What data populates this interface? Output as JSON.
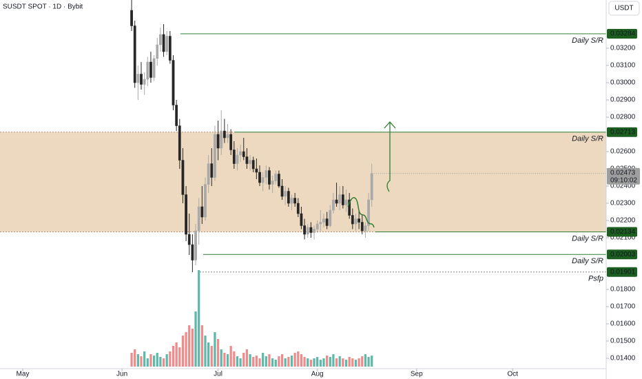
{
  "chart_data": {
    "type": "candlestick",
    "title": "SUSDT SPOT · 1D · Bybit",
    "currency": "USDT",
    "xlim": [
      -7.1,
      182.2
    ],
    "xticks": [
      {
        "value": 0,
        "label": "May"
      },
      {
        "value": 31,
        "label": "Jun"
      },
      {
        "value": 61,
        "label": "Jul"
      },
      {
        "value": 92,
        "label": "Aug"
      },
      {
        "value": 123,
        "label": "Sep"
      },
      {
        "value": 153,
        "label": "Oct"
      }
    ],
    "ylim": [
      0.0134,
      0.0348
    ],
    "yticks": [
      {
        "value": 0.032,
        "label": "0.03200"
      },
      {
        "value": 0.031,
        "label": "0.03100"
      },
      {
        "value": 0.03,
        "label": "0.03000"
      },
      {
        "value": 0.029,
        "label": "0.02900"
      },
      {
        "value": 0.028,
        "label": "0.02800"
      },
      {
        "value": 0.026,
        "label": "0.02600"
      },
      {
        "value": 0.025,
        "label": "0.02500"
      },
      {
        "value": 0.024,
        "label": "0.02400"
      },
      {
        "value": 0.023,
        "label": "0.02300"
      },
      {
        "value": 0.022,
        "label": "0.02200"
      },
      {
        "value": 0.021,
        "label": "0.02100"
      },
      {
        "value": 0.018,
        "label": "0.01800"
      },
      {
        "value": 0.017,
        "label": "0.01700"
      },
      {
        "value": 0.016,
        "label": "0.01600"
      },
      {
        "value": 0.015,
        "label": "0.01500"
      },
      {
        "value": 0.014,
        "label": "0.01400"
      }
    ],
    "up_color": "#a9a9a9",
    "down_color": "#262626",
    "volume_up_color": "#5fb8a9",
    "volume_down_color": "#ee8b8b",
    "zone": {
      "from": 0.02134,
      "to": 0.02713,
      "color": "#e9d2b4"
    },
    "levels": [
      {
        "value": 0.03284,
        "note": "Daily S/R"
      },
      {
        "value": 0.02713,
        "note": "Daily S/R"
      },
      {
        "value": 0.02134,
        "note": "Daily S/R"
      },
      {
        "value": 0.02003,
        "note": "Daily S/R"
      },
      {
        "value": 0.01901,
        "note": "Psfp"
      }
    ],
    "last_price": {
      "value": 0.02473,
      "countdown": "09:10:02"
    },
    "x": [
      34,
      35,
      36,
      37,
      38,
      39,
      40,
      41,
      42,
      43,
      44,
      45,
      46,
      47,
      48,
      49,
      50,
      51,
      52,
      53,
      54,
      55,
      56,
      57,
      58,
      59,
      60,
      61,
      62,
      63,
      64,
      65,
      66,
      67,
      68,
      69,
      70,
      71,
      72,
      73,
      74,
      75,
      76,
      77,
      78,
      79,
      80,
      81,
      82,
      83,
      84,
      85,
      86,
      87,
      88,
      89,
      90,
      91,
      92,
      93,
      94,
      95,
      96,
      97,
      98,
      99,
      100,
      101,
      102,
      103,
      104,
      105,
      106,
      107,
      108,
      109
    ],
    "open": [
      0.0342,
      0.0333,
      0.03,
      0.0305,
      0.0299,
      0.0302,
      0.0312,
      0.0303,
      0.0314,
      0.0322,
      0.0328,
      0.0318,
      0.0327,
      0.0313,
      0.0287,
      0.0275,
      0.0255,
      0.0235,
      0.0212,
      0.0206,
      0.0197,
      0.0214,
      0.0228,
      0.0222,
      0.0241,
      0.0253,
      0.0245,
      0.027,
      0.0262,
      0.0272,
      0.0268,
      0.027,
      0.0261,
      0.0253,
      0.0258,
      0.026,
      0.0257,
      0.0253,
      0.0255,
      0.025,
      0.0248,
      0.0242,
      0.0245,
      0.0249,
      0.0241,
      0.0243,
      0.0247,
      0.024,
      0.0234,
      0.0237,
      0.023,
      0.0233,
      0.023,
      0.0224,
      0.0217,
      0.0212,
      0.0216,
      0.0213,
      0.0215,
      0.0218,
      0.0219,
      0.0221,
      0.0217,
      0.0226,
      0.0232,
      0.023,
      0.0235,
      0.0229,
      0.0232,
      0.0223,
      0.0218,
      0.0221,
      0.0219,
      0.0214,
      0.0217,
      0.0232
    ],
    "high": [
      0.0348,
      0.0336,
      0.031,
      0.0312,
      0.0306,
      0.0315,
      0.0318,
      0.0316,
      0.0326,
      0.0332,
      0.0334,
      0.033,
      0.033,
      0.0316,
      0.029,
      0.0279,
      0.0262,
      0.024,
      0.0224,
      0.0212,
      0.0218,
      0.0233,
      0.024,
      0.0245,
      0.0258,
      0.0262,
      0.0275,
      0.0278,
      0.0284,
      0.0279,
      0.0276,
      0.0273,
      0.0266,
      0.0262,
      0.0264,
      0.0268,
      0.0262,
      0.0258,
      0.0257,
      0.0256,
      0.0252,
      0.0248,
      0.0252,
      0.0251,
      0.0246,
      0.0249,
      0.0249,
      0.0244,
      0.024,
      0.0239,
      0.0235,
      0.0236,
      0.0233,
      0.0228,
      0.0221,
      0.0218,
      0.0219,
      0.0217,
      0.022,
      0.0226,
      0.0224,
      0.0225,
      0.0229,
      0.0236,
      0.0242,
      0.024,
      0.024,
      0.0238,
      0.0236,
      0.0227,
      0.0224,
      0.0226,
      0.0223,
      0.0219,
      0.0236,
      0.0253
    ],
    "low": [
      0.033,
      0.0297,
      0.029,
      0.0296,
      0.0293,
      0.0298,
      0.03,
      0.0301,
      0.031,
      0.0318,
      0.0315,
      0.0316,
      0.0311,
      0.0284,
      0.0272,
      0.025,
      0.023,
      0.0208,
      0.02,
      0.019,
      0.0194,
      0.0206,
      0.0218,
      0.022,
      0.0236,
      0.024,
      0.0243,
      0.0255,
      0.0258,
      0.0265,
      0.0265,
      0.0258,
      0.025,
      0.0249,
      0.0254,
      0.0255,
      0.025,
      0.0249,
      0.0248,
      0.0244,
      0.024,
      0.0237,
      0.0241,
      0.0238,
      0.0236,
      0.0241,
      0.0239,
      0.0232,
      0.0229,
      0.0228,
      0.0226,
      0.0228,
      0.0222,
      0.0215,
      0.0209,
      0.021,
      0.021,
      0.0209,
      0.0213,
      0.0214,
      0.0216,
      0.0215,
      0.0216,
      0.0224,
      0.0228,
      0.0226,
      0.0227,
      0.0225,
      0.0221,
      0.0215,
      0.0214,
      0.0215,
      0.0212,
      0.021,
      0.0214,
      0.0228
    ],
    "close": [
      0.0333,
      0.03,
      0.0305,
      0.0299,
      0.0302,
      0.0312,
      0.0303,
      0.0314,
      0.0322,
      0.0328,
      0.0318,
      0.0327,
      0.0313,
      0.0287,
      0.0275,
      0.0255,
      0.0235,
      0.0212,
      0.0206,
      0.0197,
      0.0214,
      0.0228,
      0.0222,
      0.0241,
      0.0253,
      0.0245,
      0.027,
      0.0262,
      0.0272,
      0.0268,
      0.027,
      0.0261,
      0.0253,
      0.0258,
      0.026,
      0.0257,
      0.0253,
      0.0255,
      0.025,
      0.0248,
      0.0242,
      0.0245,
      0.0249,
      0.0241,
      0.0243,
      0.0247,
      0.024,
      0.0234,
      0.0237,
      0.023,
      0.0233,
      0.023,
      0.0224,
      0.0217,
      0.0212,
      0.0216,
      0.0213,
      0.0215,
      0.0218,
      0.0219,
      0.0221,
      0.0217,
      0.0226,
      0.0232,
      0.023,
      0.0235,
      0.0229,
      0.0232,
      0.0223,
      0.0218,
      0.0221,
      0.0219,
      0.0214,
      0.0217,
      0.0232,
      0.02473
    ],
    "volume": [
      20,
      25,
      18,
      15,
      22,
      12,
      18,
      16,
      20,
      14,
      12,
      18,
      22,
      30,
      35,
      28,
      45,
      50,
      60,
      55,
      80,
      140,
      60,
      45,
      35,
      30,
      50,
      40,
      25,
      20,
      18,
      30,
      22,
      15,
      12,
      20,
      25,
      18,
      14,
      16,
      12,
      20,
      15,
      18,
      12,
      10,
      15,
      18,
      12,
      14,
      16,
      20,
      22,
      18,
      14,
      12,
      10,
      12,
      14,
      10,
      12,
      16,
      14,
      18,
      12,
      15,
      12,
      10,
      14,
      12,
      10,
      12,
      15,
      18,
      14,
      16
    ]
  }
}
